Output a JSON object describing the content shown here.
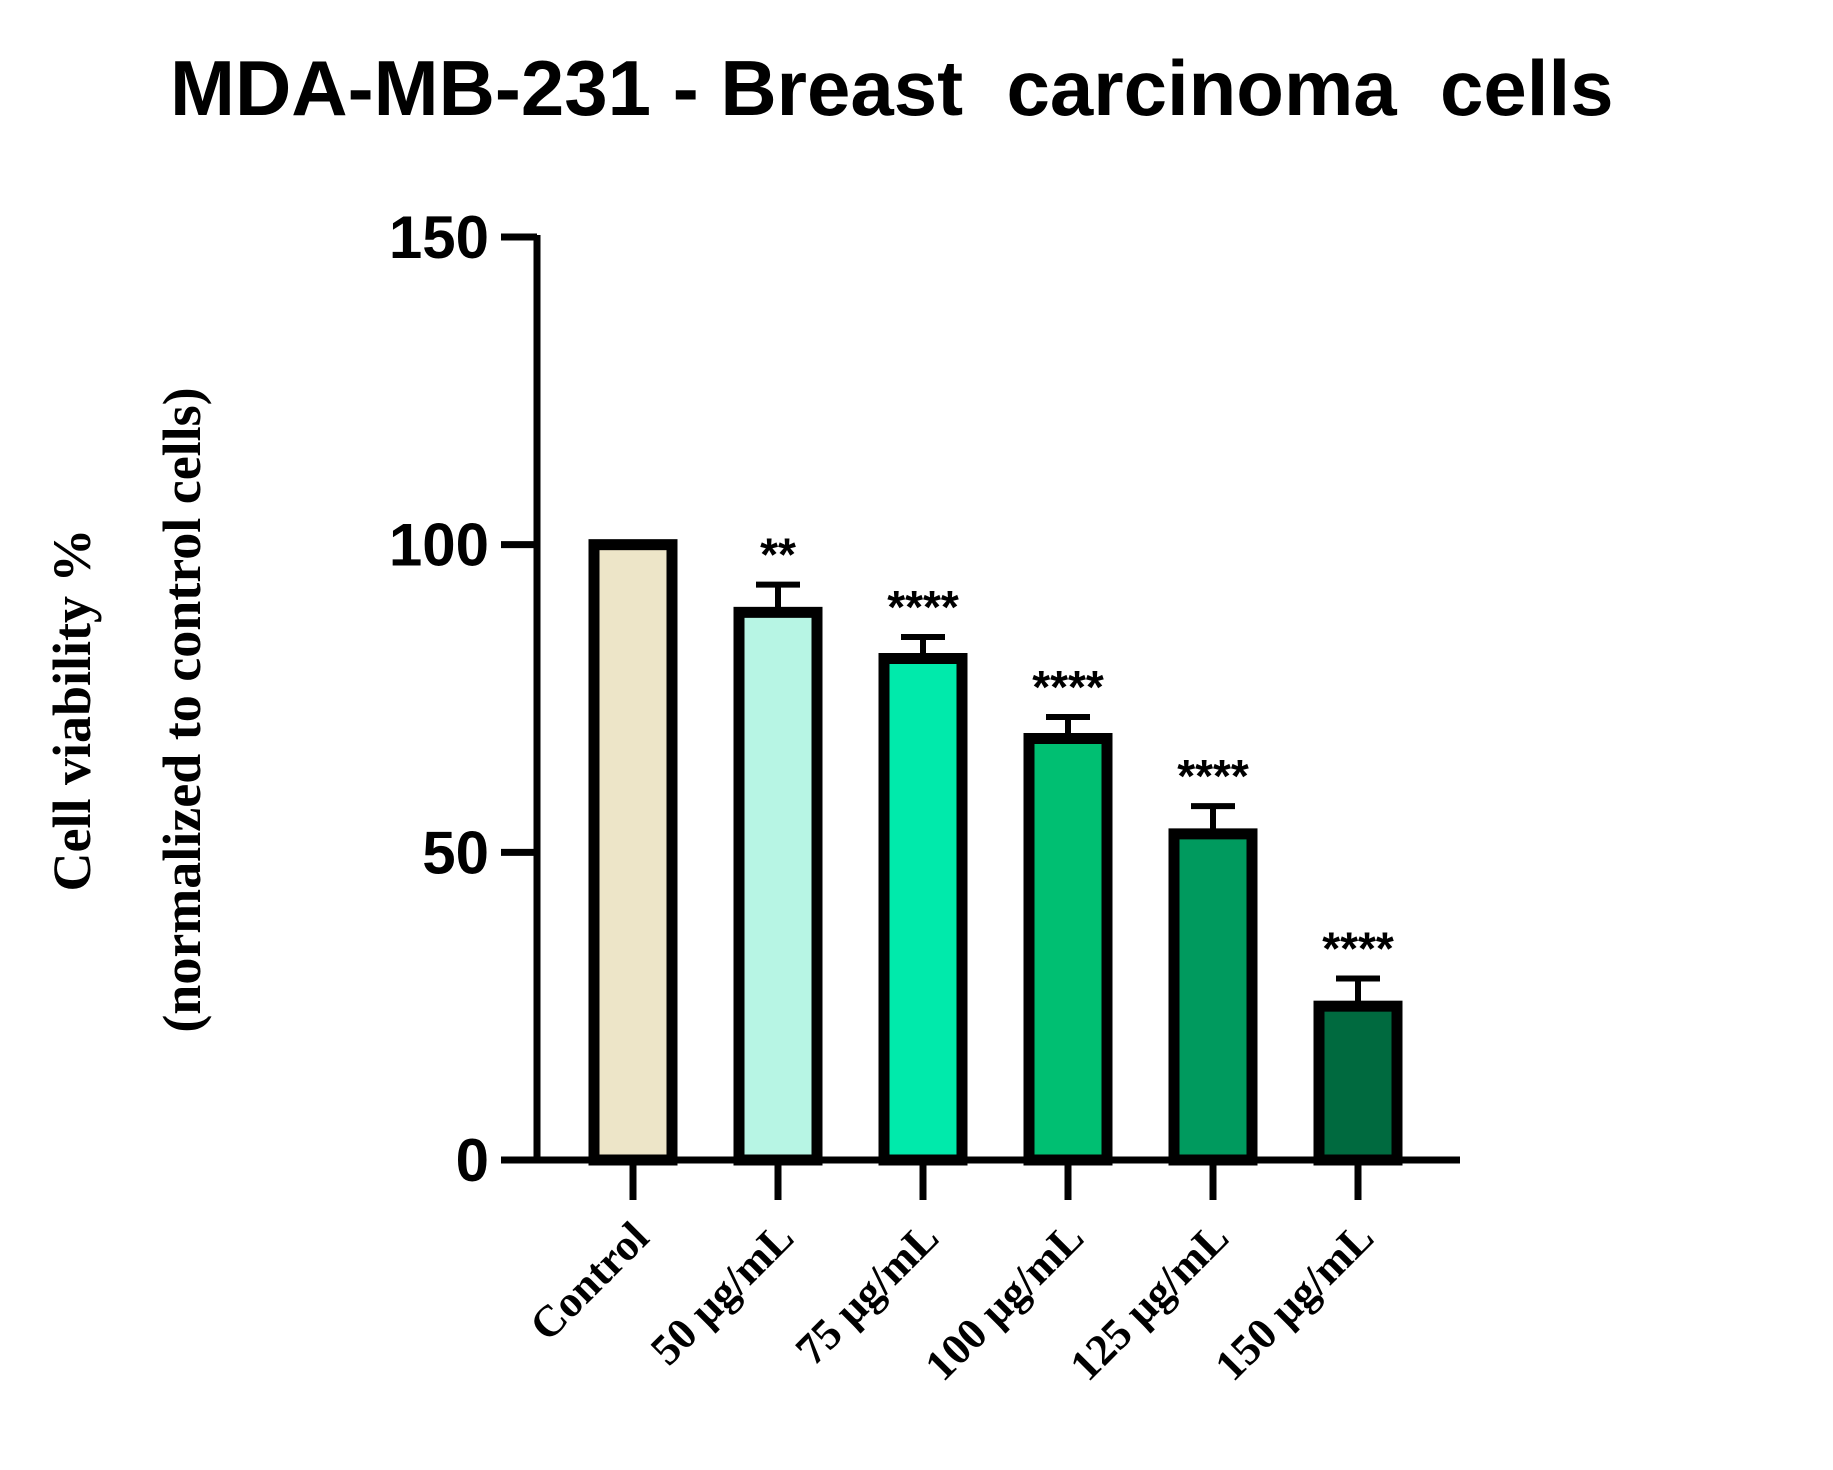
{
  "chart_data": {
    "type": "bar",
    "title": "MDA-MB-231 - Breast  carcinoma  cells",
    "ylabel_line1": "Cell viability %",
    "ylabel_line2": "(normalized to control cells)",
    "xlabel": "",
    "ylim": [
      0,
      150
    ],
    "yticks": [
      "0",
      "50",
      "100",
      "150"
    ],
    "grid": false,
    "legend": "none",
    "categories": [
      "Control",
      "50 μg/mL",
      "75 μg/mL",
      "100 μg/mL",
      "125 μg/mL",
      "150 μg/mL"
    ],
    "values": [
      100,
      89,
      81.5,
      68.5,
      53,
      25
    ],
    "errors": [
      0,
      4.5,
      3.5,
      3.5,
      4.5,
      4.5
    ],
    "significance": [
      "",
      "**",
      "****",
      "****",
      "****",
      "****"
    ],
    "colors": [
      "#ede5c8",
      "#b7f5e4",
      "#00eaab",
      "#00bf72",
      "#009a5e",
      "#006a3f"
    ]
  }
}
